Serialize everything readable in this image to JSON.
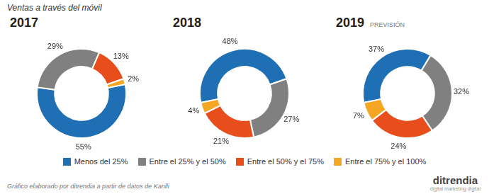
{
  "chart_data": {
    "type": "pie",
    "title": "Ventas a través del móvil",
    "categories": [
      "Menos del 25%",
      "Entre el 25% y el 50%",
      "Entre el 50% y el 75%",
      "Entre el 75% y el 100%"
    ],
    "colors": [
      "#1f6fb5",
      "#808080",
      "#e84e1b",
      "#f5a623"
    ],
    "series": [
      {
        "name": "2017",
        "values": [
          55,
          29,
          13,
          2
        ],
        "value_labels": [
          "55%",
          "29%",
          "13%",
          "2%"
        ]
      },
      {
        "name": "2018",
        "values": [
          48,
          27,
          21,
          4
        ],
        "value_labels": [
          "48%",
          "27%",
          "21%",
          "4%"
        ]
      },
      {
        "name": "2019",
        "values": [
          37,
          32,
          24,
          7
        ],
        "value_labels": [
          "37%",
          "32%",
          "24%",
          "7%"
        ]
      }
    ],
    "data_labels": true,
    "legend": "bottom",
    "annotations": [
      {
        "text": "PREVISIÓN",
        "series": "2019"
      },
      {
        "text": "Gráfico elaborado por ditrendia a partir de datos de Kanlli"
      },
      {
        "text": "ditrendia"
      },
      {
        "text": "digital  marketing  digital"
      }
    ]
  }
}
